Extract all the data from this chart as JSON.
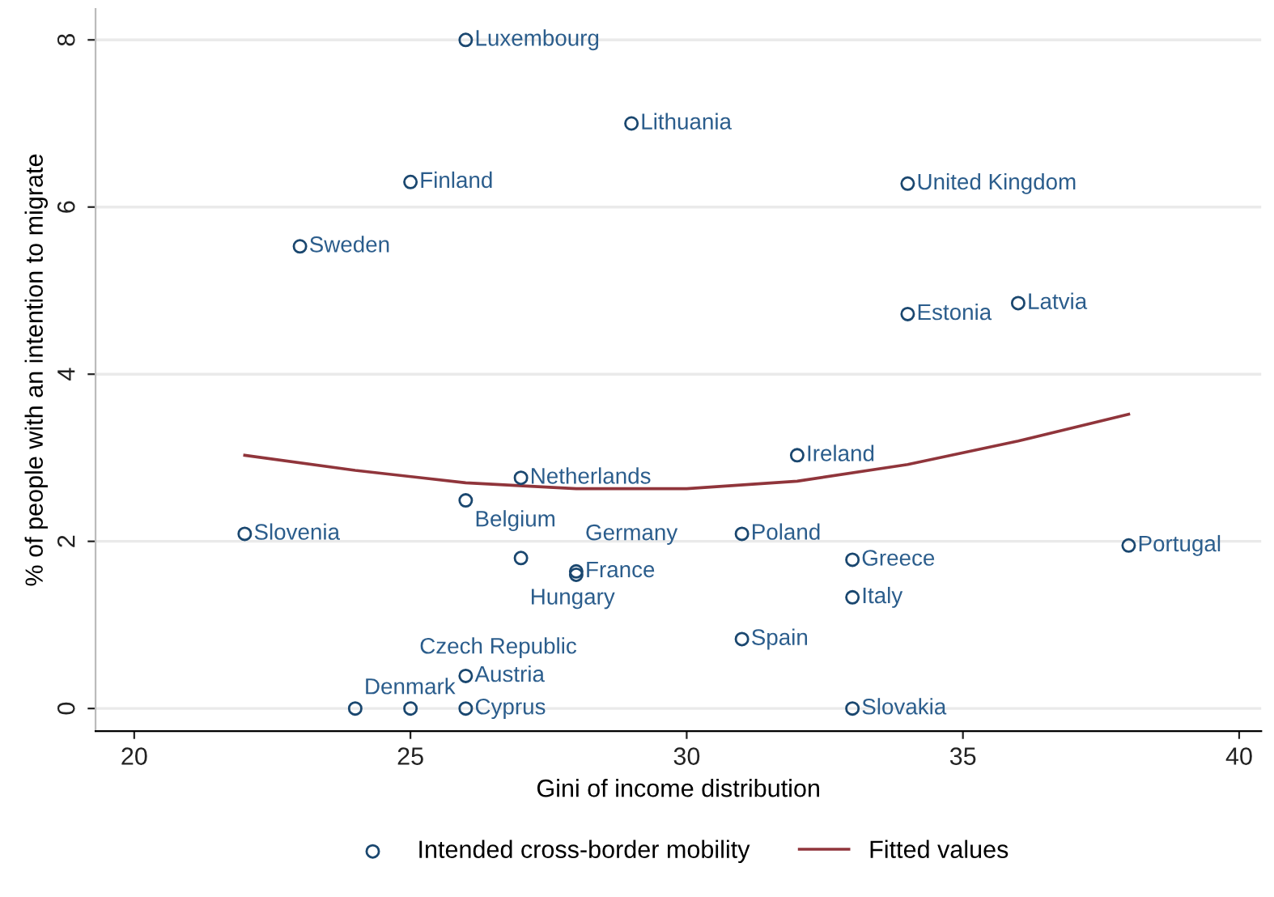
{
  "chart_data": {
    "type": "scatter",
    "xlabel": "Gini of income distribution",
    "ylabel": "% of people with an intention to migrate",
    "xlim": [
      19.3,
      40.4
    ],
    "xticks": [
      20,
      25,
      30,
      35,
      40
    ],
    "ylim": [
      -0.27,
      8.37
    ],
    "yticks": [
      0,
      2,
      4,
      6,
      8
    ],
    "grid": "y",
    "legend": "bottom",
    "series": [
      {
        "name": "Intended cross-border mobility",
        "color": "#1a476f",
        "marker": "circle",
        "x": [
          26,
          29,
          25,
          23,
          34,
          34,
          36,
          32,
          27,
          26,
          22,
          27,
          28,
          28,
          31,
          33,
          33,
          31,
          38,
          26,
          24,
          25,
          26,
          33
        ],
        "values": [
          8.0,
          7.0,
          6.3,
          5.53,
          6.28,
          4.72,
          4.85,
          3.03,
          2.76,
          2.49,
          2.09,
          1.8,
          1.64,
          1.6,
          2.09,
          1.78,
          1.33,
          0.83,
          1.95,
          0.39,
          0,
          0,
          0,
          0
        ]
      },
      {
        "name": "Fitted values",
        "type": "line",
        "color": "#90353b",
        "line_style": "solid",
        "x": [
          22,
          24,
          26,
          28,
          30,
          32,
          34,
          36,
          38
        ],
        "values": [
          3.03,
          2.85,
          2.7,
          2.63,
          2.63,
          2.72,
          2.92,
          3.2,
          3.52
        ]
      }
    ],
    "annotations": [
      {
        "text": "Luxembourg",
        "x": 26,
        "y": 8.0
      },
      {
        "text": "Lithuania",
        "x": 29,
        "y": 7.0
      },
      {
        "text": "Finland",
        "x": 25,
        "y": 6.3
      },
      {
        "text": "Sweden",
        "x": 23,
        "y": 5.53
      },
      {
        "text": "United Kingdom",
        "x": 34,
        "y": 6.28
      },
      {
        "text": "Estonia",
        "x": 34,
        "y": 4.72
      },
      {
        "text": "Latvia",
        "x": 36,
        "y": 4.85
      },
      {
        "text": "Ireland",
        "x": 32,
        "y": 3.03
      },
      {
        "text": "Netherlands",
        "x": 27,
        "y": 2.76
      },
      {
        "text": "Belgium",
        "x": 26,
        "y": 2.49
      },
      {
        "text": "Slovenia",
        "x": 22,
        "y": 2.09
      },
      {
        "text": "Hungary",
        "x": 27,
        "y": 1.8
      },
      {
        "text": "France",
        "x": 28,
        "y": 1.64
      },
      {
        "text": "Germany",
        "x": 28,
        "y": 1.6
      },
      {
        "text": "Poland",
        "x": 31,
        "y": 2.09
      },
      {
        "text": "Greece",
        "x": 33,
        "y": 1.78
      },
      {
        "text": "Italy",
        "x": 33,
        "y": 1.33
      },
      {
        "text": "Spain",
        "x": 31,
        "y": 0.83
      },
      {
        "text": "Portugal",
        "x": 38,
        "y": 1.95
      },
      {
        "text": "Austria",
        "x": 26,
        "y": 0.39
      },
      {
        "text": "Denmark",
        "x": 24,
        "y": 0
      },
      {
        "text": "Czech Republic",
        "x": 25,
        "y": 0
      },
      {
        "text": "Cyprus",
        "x": 26,
        "y": 0
      },
      {
        "text": "Slovakia",
        "x": 33,
        "y": 0
      }
    ]
  }
}
